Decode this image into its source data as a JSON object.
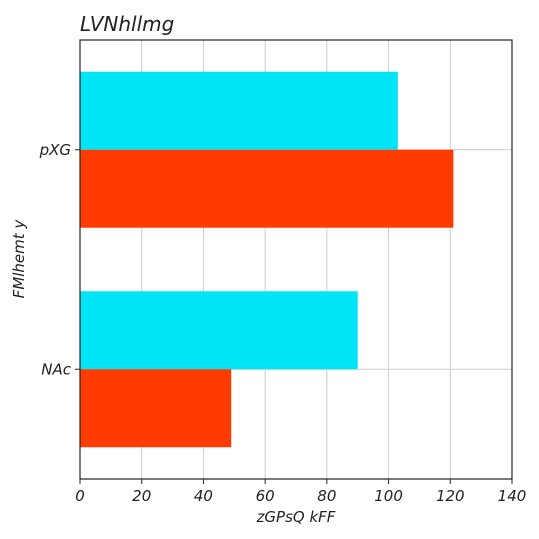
{
  "chart_data": {
    "type": "bar",
    "orientation": "horizontal",
    "title": "LVNhllmg",
    "xlabel": "zGPsQ  kFF",
    "ylabel": "FMlhemt y",
    "categories": [
      "pXG",
      "NAc"
    ],
    "series": [
      {
        "values": [
          103,
          90
        ],
        "color": "#00e5f5"
      },
      {
        "values": [
          121,
          49
        ],
        "color": "#ff3b00"
      }
    ],
    "xlim": [
      0,
      140
    ],
    "xticks": [
      0,
      20,
      40,
      60,
      80,
      100,
      120,
      140
    ],
    "grid": true
  }
}
